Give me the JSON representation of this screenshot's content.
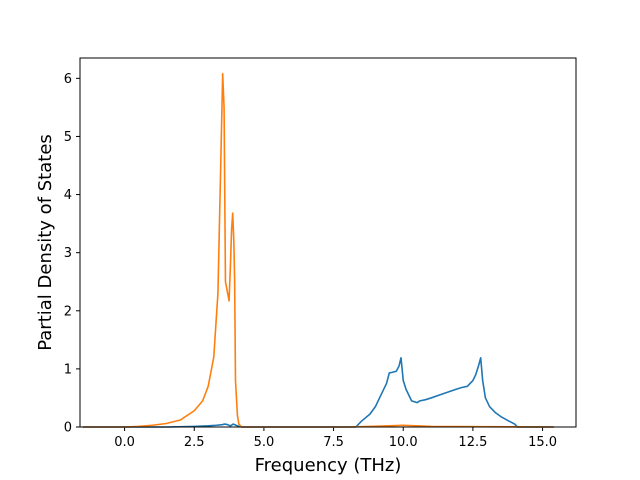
{
  "chart_data": {
    "type": "line",
    "xlabel": "Frequency (THz)",
    "ylabel": "Partial Density of States",
    "xlim": [
      -1.6,
      16.2
    ],
    "ylim": [
      0,
      6.35
    ],
    "xticks": [
      0.0,
      2.5,
      5.0,
      7.5,
      10.0,
      12.5,
      15.0
    ],
    "xtick_labels": [
      "0.0",
      "2.5",
      "5.0",
      "7.5",
      "10.0",
      "12.5",
      "15.0"
    ],
    "yticks": [
      0,
      1,
      2,
      3,
      4,
      5,
      6
    ],
    "ytick_labels": [
      "0",
      "1",
      "2",
      "3",
      "4",
      "5",
      "6"
    ],
    "grid": false,
    "series": [
      {
        "color": "#1f77b4",
        "x": [
          -1.5,
          1.5,
          2.5,
          3.0,
          3.3,
          3.5,
          3.6,
          3.7,
          3.8,
          3.9,
          4.0,
          4.1,
          4.2,
          8.3,
          8.5,
          8.8,
          9.0,
          9.2,
          9.4,
          9.5,
          9.6,
          9.75,
          9.85,
          9.92,
          10.0,
          10.1,
          10.3,
          10.5,
          10.6,
          10.8,
          11.0,
          11.3,
          11.6,
          11.9,
          12.1,
          12.3,
          12.5,
          12.6,
          12.7,
          12.78,
          12.85,
          12.95,
          13.1,
          13.3,
          13.5,
          13.8,
          14.0,
          14.1,
          15.4
        ],
        "y": [
          0,
          0,
          0.01,
          0.02,
          0.03,
          0.04,
          0.05,
          0.04,
          0.02,
          0.05,
          0.03,
          0.01,
          0,
          0,
          0.1,
          0.22,
          0.35,
          0.55,
          0.75,
          0.93,
          0.94,
          0.96,
          1.05,
          1.19,
          0.8,
          0.65,
          0.45,
          0.42,
          0.45,
          0.47,
          0.5,
          0.55,
          0.6,
          0.65,
          0.68,
          0.7,
          0.8,
          0.9,
          1.05,
          1.19,
          0.8,
          0.5,
          0.35,
          0.25,
          0.18,
          0.1,
          0.05,
          0,
          0
        ]
      },
      {
        "color": "#ff7f0e",
        "x": [
          -1.5,
          0.0,
          0.5,
          1.0,
          1.5,
          2.0,
          2.5,
          2.8,
          3.0,
          3.2,
          3.35,
          3.45,
          3.52,
          3.57,
          3.62,
          3.68,
          3.75,
          3.8,
          3.84,
          3.88,
          3.92,
          3.95,
          3.98,
          4.05,
          4.1,
          4.2,
          8.0,
          9.5,
          10.0,
          11.0,
          15.4
        ],
        "y": [
          0,
          0,
          0.01,
          0.03,
          0.06,
          0.12,
          0.28,
          0.45,
          0.7,
          1.2,
          2.3,
          4.5,
          6.08,
          5.5,
          2.5,
          2.35,
          2.17,
          2.8,
          3.4,
          3.68,
          3.2,
          2.5,
          0.8,
          0.2,
          0.05,
          0,
          0,
          0.02,
          0.03,
          0.01,
          0
        ]
      }
    ]
  }
}
